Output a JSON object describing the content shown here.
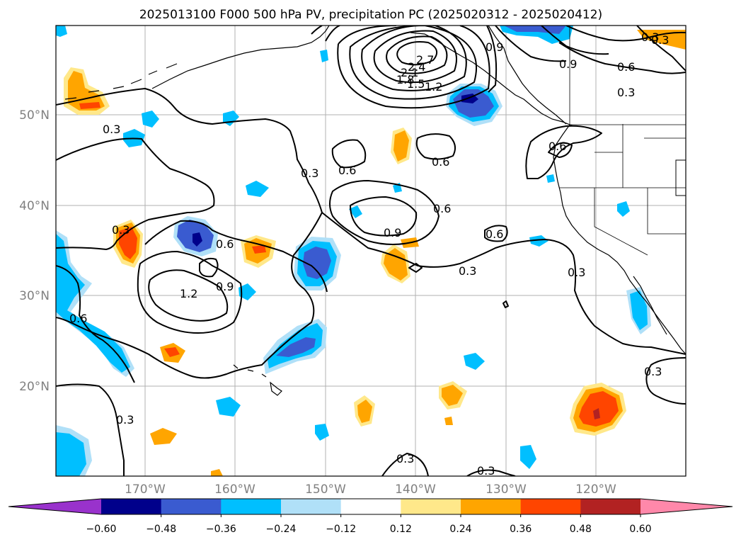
{
  "title": "2025013100 F000 500 hPa PV, precipitation PC (2025020312 - 2025020412)",
  "lat_labels": [
    "50°N",
    "40°N",
    "30°N",
    "20°N"
  ],
  "lon_labels": [
    "170°W",
    "160°W",
    "150°W",
    "140°W",
    "130°W",
    "120°W"
  ],
  "colorbar": {
    "ticks": [
      "−0.60",
      "−0.48",
      "−0.36",
      "−0.24",
      "−0.12",
      "0.12",
      "0.24",
      "0.36",
      "0.48",
      "0.60"
    ],
    "colors": [
      "#9932cc",
      "#00008b",
      "#3a5bd0",
      "#00bfff",
      "#b0e0f8",
      "#ffffff",
      "#ffe88a",
      "#ffa500",
      "#ff4500",
      "#b22222",
      "#ff88aa"
    ]
  },
  "contour_labels": [
    "2.7",
    "2.4",
    "2.1",
    "1.8",
    "1.5",
    "1.2",
    "0.9",
    "0.9",
    "0.6",
    "0.3",
    "0.3",
    "0.3",
    "0.6",
    "0.6",
    "0.3",
    "0.6",
    "0.9",
    "0.6",
    "0.6",
    "0.6",
    "0.9",
    "1.2",
    "0.6",
    "0.3",
    "0.3",
    "0.3",
    "0.3",
    "0.3",
    "0.3",
    "0.3",
    "0.3"
  ]
}
